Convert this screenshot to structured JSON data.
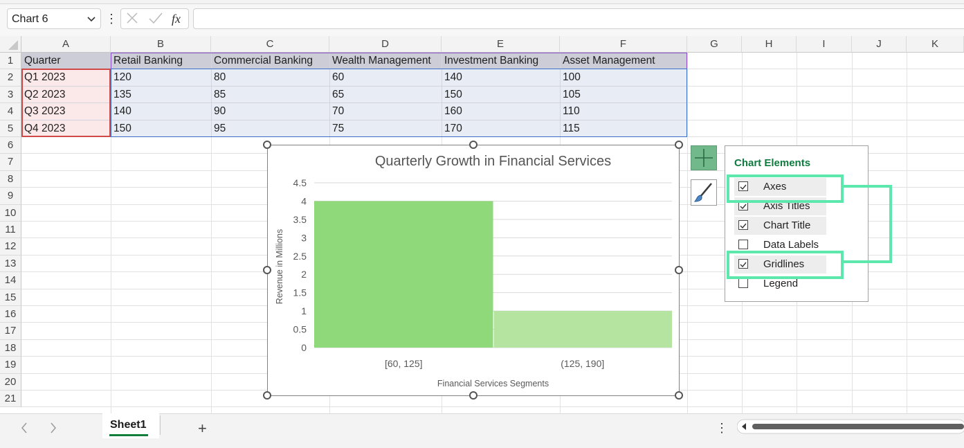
{
  "namebox": {
    "value": "Chart 6"
  },
  "formula_bar": {
    "value": ""
  },
  "columns": [
    "A",
    "B",
    "C",
    "D",
    "E",
    "F",
    "G",
    "H",
    "I",
    "J",
    "K"
  ],
  "rows": [
    "1",
    "2",
    "3",
    "4",
    "5",
    "6",
    "7",
    "8",
    "9",
    "10",
    "11",
    "12",
    "13",
    "14",
    "15",
    "16",
    "17",
    "18",
    "19",
    "20",
    "21"
  ],
  "table": {
    "header": [
      "Quarter",
      "Retail Banking",
      "Commercial Banking",
      "Wealth Management",
      "Investment Banking",
      "Asset Management"
    ],
    "rows": [
      [
        "Q1 2023",
        "120",
        "80",
        "60",
        "140",
        "100"
      ],
      [
        "Q2 2023",
        "135",
        "85",
        "65",
        "150",
        "105"
      ],
      [
        "Q3 2023",
        "140",
        "90",
        "70",
        "160",
        "110"
      ],
      [
        "Q4 2023",
        "150",
        "95",
        "75",
        "170",
        "115"
      ]
    ]
  },
  "chart_data": {
    "type": "bar",
    "subtype": "histogram",
    "title": "Quarterly Growth in Financial Services",
    "xlabel": "Financial Services Segments",
    "ylabel": "Revenue in Millions",
    "categories": [
      "[60, 125]",
      "(125, 190]"
    ],
    "values": [
      4,
      1
    ],
    "ylim": [
      0,
      4.5
    ],
    "yticks": [
      "0",
      "0.5",
      "1",
      "1.5",
      "2",
      "2.5",
      "3",
      "3.5",
      "4",
      "4.5"
    ],
    "grid": true,
    "colors": [
      "#8fd97a",
      "#b4e4a0"
    ]
  },
  "chart_elements": {
    "title": "Chart Elements",
    "options": [
      {
        "label": "Axes",
        "checked": true
      },
      {
        "label": "Axis Titles",
        "checked": true
      },
      {
        "label": "Chart Title",
        "checked": true
      },
      {
        "label": "Data Labels",
        "checked": false
      },
      {
        "label": "Gridlines",
        "checked": true
      },
      {
        "label": "Legend",
        "checked": false
      }
    ]
  },
  "sheet_tabs": {
    "active": "Sheet1",
    "add_label": "+"
  },
  "colors": {
    "accent": "#137d3c",
    "annotation": "#5ce8ad",
    "header_fill": "#cccdd6",
    "selection_fill": "#e7ecf5",
    "quarter_fill": "#fbe9e9"
  }
}
